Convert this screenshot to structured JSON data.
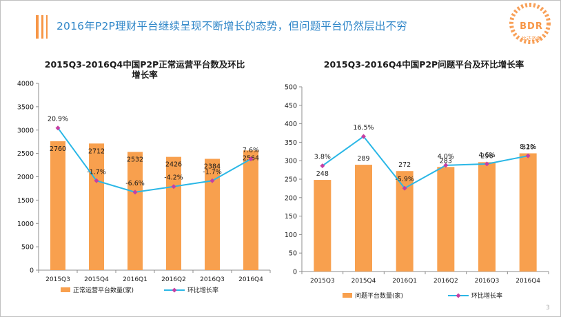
{
  "header": {
    "title": "2016年P2P理财平台继续呈现不断增长的态势，但问题平台仍然层出不穷"
  },
  "logo": {
    "text": "BDR",
    "subtext": "比达咨询"
  },
  "colors": {
    "accent": "#f79646",
    "title_blue": "#2f86c8",
    "bar": "#f8a04e",
    "line": "#2ab7e6",
    "marker": "#c53fa3"
  },
  "page_number": "3",
  "chart_data": [
    {
      "type": "bar",
      "title": "2015Q3-2016Q4中国P2P正常运营平台数及环比增长率",
      "title_lines": [
        "2015Q3-2016Q4中国P2P正常运营平台数及环比",
        "增长率"
      ],
      "categories": [
        "2015Q3",
        "2015Q4",
        "2016Q1",
        "2016Q2",
        "2016Q3",
        "2016Q4"
      ],
      "series": [
        {
          "name": "正常运营平台数量(家)",
          "type": "bar",
          "values": [
            2760,
            2712,
            2532,
            2426,
            2384,
            2564
          ]
        },
        {
          "name": "环比增长率",
          "type": "line",
          "values": [
            20.9,
            -1.7,
            -6.6,
            -4.2,
            -1.7,
            7.6
          ],
          "labels": [
            "20.9%",
            "-1.7%",
            "-6.6%",
            "-4.2%",
            "-1.7%",
            "7.6%"
          ]
        }
      ],
      "ylim": [
        0,
        4000
      ],
      "yticks": [
        "0",
        "500",
        "1000",
        "1500",
        "2000",
        "2500",
        "3000",
        "3500",
        "4000"
      ],
      "line_axis_range": [
        -40,
        40
      ],
      "xlabel": "",
      "ylabel": "",
      "legend": "bottom",
      "grid": false
    },
    {
      "type": "bar",
      "title": "2015Q3-2016Q4中国P2P问题平台及环比增长率",
      "title_lines": [
        "2015Q3-2016Q4中国P2P问题平台及环比增长率"
      ],
      "categories": [
        "2015Q3",
        "2015Q4",
        "2016Q1",
        "2016Q2",
        "2016Q3",
        "2016Q4"
      ],
      "series": [
        {
          "name": "问题平台数量(家)",
          "type": "bar",
          "values": [
            248,
            289,
            272,
            283,
            296,
            320
          ]
        },
        {
          "name": "环比增长率",
          "type": "line",
          "values": [
            3.8,
            16.5,
            -5.9,
            4.0,
            4.6,
            8.1
          ],
          "labels": [
            "3.8%",
            "16.5%",
            "-5.9%",
            "4.0%",
            "4.6%",
            "8.1%"
          ]
        }
      ],
      "ylim": [
        0,
        500
      ],
      "yticks": [
        "0",
        "50",
        "100",
        "150",
        "200",
        "250",
        "300",
        "350",
        "400",
        "450",
        "500"
      ],
      "line_axis_range": [
        -42,
        38
      ],
      "xlabel": "",
      "ylabel": "",
      "legend": "bottom",
      "grid": false
    }
  ]
}
